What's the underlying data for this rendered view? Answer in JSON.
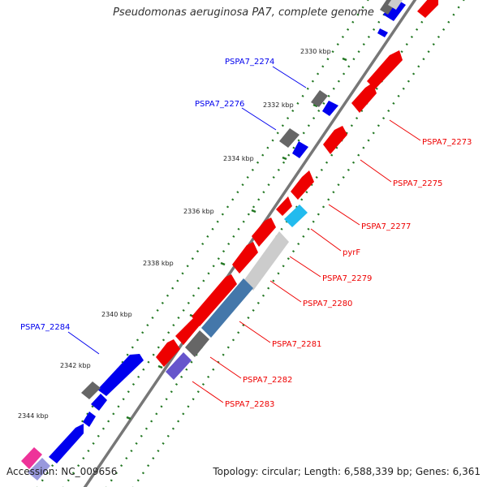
{
  "title": "Pseudomonas aeruginosa PA7, complete genome",
  "accession": "Accession: NC_009656",
  "summary": "Topology: circular; Length: 6,588,339 bp; Genes: 6,361",
  "colors": {
    "forward": "#0000ee",
    "reverse": "#ee0000",
    "backbone": "#777777",
    "grey_gene": "#666666",
    "tick": "#227722",
    "pyrF": "#22bbee",
    "steel": "#4477aa",
    "light_grey": "#cccccc",
    "violet": "#6655cc",
    "pink": "#ee3399"
  },
  "ticks": [
    "2330 kbp",
    "2332 kbp",
    "2334 kbp",
    "2336 kbp",
    "2338 kbp",
    "2340 kbp",
    "2342 kbp",
    "2344 kbp"
  ],
  "labels_left": [
    "PSPA7_2274",
    "PSPA7_2276",
    "PSPA7_2284"
  ],
  "labels_right": [
    "PSPA7_2273",
    "PSPA7_2275",
    "PSPA7_2277",
    "pyrF",
    "PSPA7_2279",
    "PSPA7_2280",
    "PSPA7_2281",
    "PSPA7_2282",
    "PSPA7_2283"
  ]
}
